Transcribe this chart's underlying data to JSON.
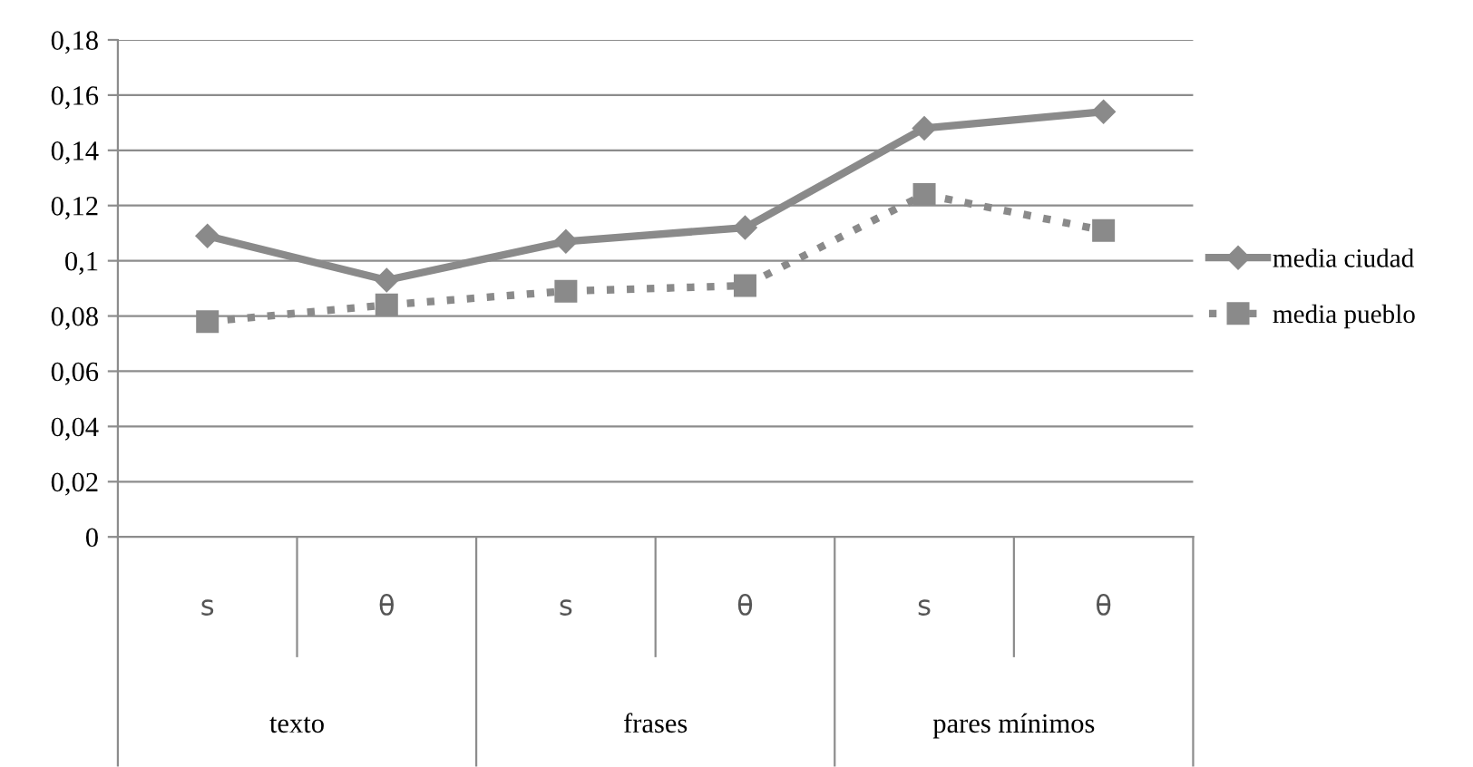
{
  "chart_data": {
    "type": "line",
    "categories": [
      "s",
      "θ",
      "s",
      "θ",
      "s",
      "θ"
    ],
    "annotations": [
      "texto",
      "frases",
      "pares mínimos"
    ],
    "series": [
      {
        "name": "media ciudad",
        "color": "#8a8a8a",
        "marker": "diamond",
        "line_style": "solid",
        "values": [
          0.109,
          0.093,
          0.107,
          0.112,
          0.148,
          0.154
        ]
      },
      {
        "name": "media pueblo",
        "color": "#8a8a8a",
        "marker": "square",
        "line_style": "dotted",
        "values": [
          0.078,
          0.084,
          0.089,
          0.091,
          0.124,
          0.111
        ]
      }
    ],
    "ylim": [
      0,
      0.18
    ],
    "yticks": [
      0,
      {
        "value": 0.02,
        "label": "0,02"
      },
      {
        "value": 0.04,
        "label": "0,04"
      },
      {
        "value": 0.06,
        "label": "0,06"
      },
      {
        "value": 0.08,
        "label": "0,08"
      },
      {
        "value": 0.1,
        "label": "0,1"
      },
      {
        "value": 0.12,
        "label": "0,12"
      },
      {
        "value": 0.14,
        "label": "0,14"
      },
      {
        "value": 0.16,
        "label": "0,16"
      },
      {
        "value": 0.18,
        "label": "0,18"
      }
    ],
    "grid": "y",
    "legend": "right"
  }
}
